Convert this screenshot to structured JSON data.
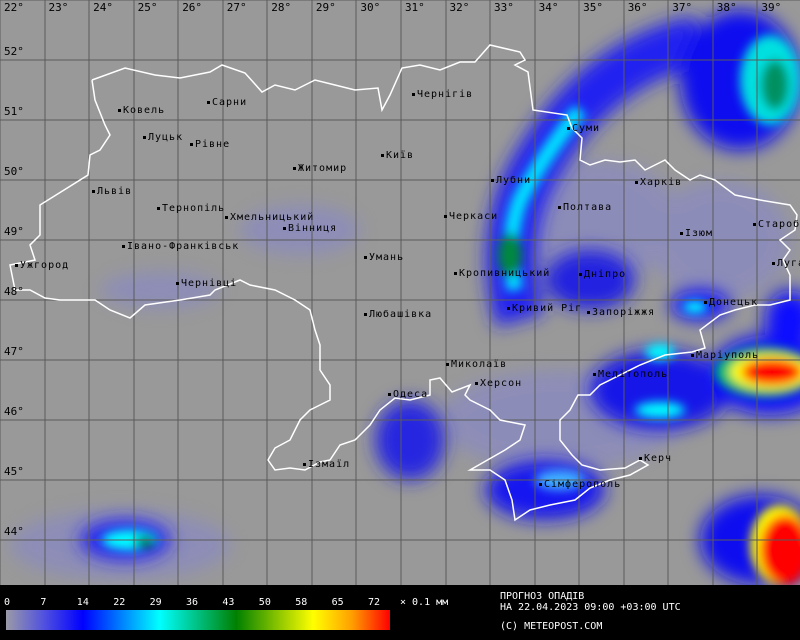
{
  "map": {
    "lon_labels": [
      "22°",
      "23°",
      "24°",
      "25°",
      "26°",
      "27°",
      "28°",
      "29°",
      "30°",
      "31°",
      "32°",
      "33°",
      "34°",
      "35°",
      "36°",
      "37°",
      "38°",
      "39°"
    ],
    "lat_labels": [
      "52°",
      "51°",
      "50°",
      "49°",
      "48°",
      "47°",
      "46°",
      "45°",
      "44°"
    ],
    "cities": [
      "Ковель",
      "Сарни",
      "Луцьк",
      "Рівне",
      "Львів",
      "Житомир",
      "Київ",
      "Тернопіль",
      "Хмельницький",
      "Вінниця",
      "Івано-Франківськ",
      "Ужгород",
      "Чернівці",
      "Умань",
      "Любашівка",
      "Чернігів",
      "Суми",
      "Лубни",
      "Полтава",
      "Харків",
      "Черкаси",
      "Кропивницький",
      "Дніпро",
      "Ізюм",
      "Старобільськ",
      "Луганськ",
      "Донецьк",
      "Кривий Ріг",
      "Запоріжжя",
      "Маріуполь",
      "Мелітополь",
      "Миколаїв",
      "Херсон",
      "Одеса",
      "Ізмаїл",
      "Керч",
      "Сімферополь"
    ],
    "colors": {
      "background": "#999999",
      "grid": "#5a5a5a",
      "border": "#ffffff"
    }
  },
  "legend": {
    "ticks": [
      "0",
      "7",
      "14",
      "22",
      "29",
      "36",
      "43",
      "50",
      "58",
      "65",
      "72"
    ],
    "unit": "× 0.1 мм",
    "title_line1": "ПРОГНОЗ ОПАДІВ",
    "title_line2": "НА 22.04.2023 09:00 +03:00 UTC",
    "copyright": "(C) METEOPOST.COM",
    "scale_colors": [
      "#9a9aa8",
      "#0000ff",
      "#00ffff",
      "#008000",
      "#ffff00",
      "#ff0000"
    ]
  }
}
